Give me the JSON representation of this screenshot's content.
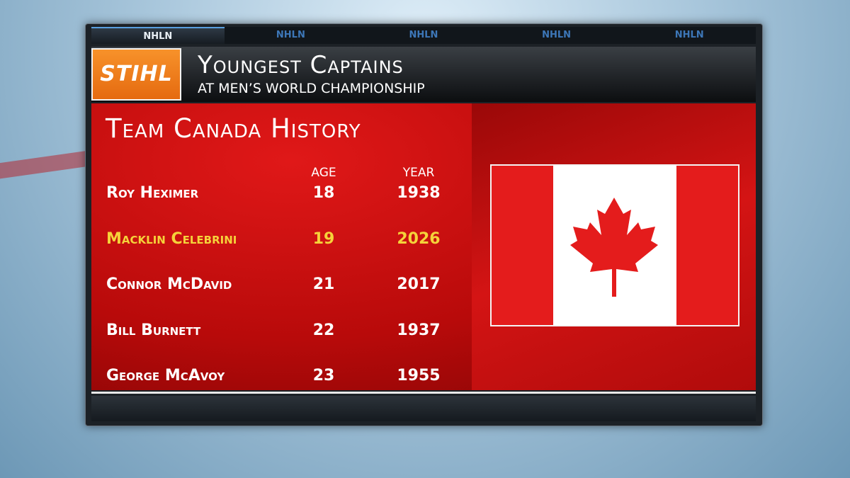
{
  "tabs": [
    "NHLN",
    "NHLN",
    "NHLN",
    "NHLN",
    "NHLN"
  ],
  "header": {
    "sponsor": "STIHL",
    "title": "Youngest Captains",
    "subtitle": "AT MEN’S WORLD CHAMPIONSHIP"
  },
  "table": {
    "title": "Team Canada History",
    "columns": [
      "AGE",
      "YEAR"
    ],
    "rows": [
      [
        "Roy Heximer",
        18,
        1938
      ],
      [
        "Macklin Celebrini",
        19,
        2026
      ],
      [
        "Connor McDavid",
        21,
        2017
      ],
      [
        "Bill Burnett",
        22,
        1937
      ],
      [
        "George McAvoy",
        23,
        1955
      ]
    ],
    "highlight_row": 1,
    "highlight_color": "#f5d23a"
  }
}
